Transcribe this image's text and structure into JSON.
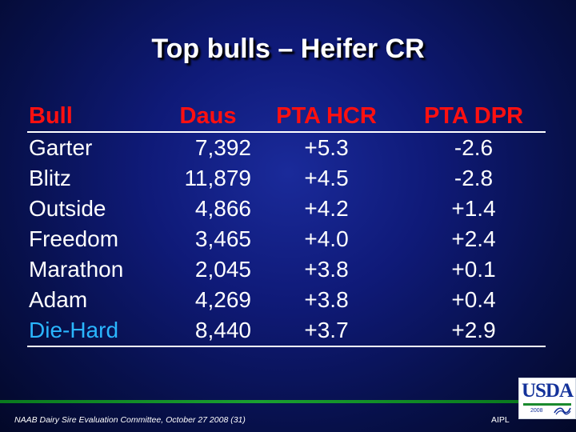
{
  "slide": {
    "title": "Top bulls – Heifer CR"
  },
  "table": {
    "headers": {
      "bull": "Bull",
      "daus": "Daus",
      "pta_hcr": "PTA HCR",
      "pta_dpr": "PTA DPR"
    },
    "rows": [
      {
        "bull": "Garter",
        "daus": "7,392",
        "pta_hcr": "+5.3",
        "pta_dpr": "-2.6"
      },
      {
        "bull": "Blitz",
        "daus": "11,879",
        "pta_hcr": "+4.5",
        "pta_dpr": "-2.8"
      },
      {
        "bull": "Outside",
        "daus": "4,866",
        "pta_hcr": "+4.2",
        "pta_dpr": "+1.4"
      },
      {
        "bull": "Freedom",
        "daus": "3,465",
        "pta_hcr": "+4.0",
        "pta_dpr": "+2.4"
      },
      {
        "bull": "Marathon",
        "daus": "2,045",
        "pta_hcr": "+3.8",
        "pta_dpr": "+0.1"
      },
      {
        "bull": "Adam",
        "daus": "4,269",
        "pta_hcr": "+3.8",
        "pta_dpr": "+0.4"
      },
      {
        "bull": "Die-Hard",
        "daus": "8,440",
        "pta_hcr": "+3.7",
        "pta_dpr": "+2.9"
      }
    ]
  },
  "footer": {
    "left_text": "NAAB Dairy Sire Evaluation Committee, October 27 2008 (31)",
    "right_text": "AIPL",
    "logo_text": "USDA",
    "logo_year": "2008"
  },
  "colors": {
    "header_text": "#ff1010",
    "body_text": "#ffffff",
    "highlight_bull": "#2ab6ff",
    "footer_line": "#1ba030",
    "background": "#0f1a78"
  }
}
